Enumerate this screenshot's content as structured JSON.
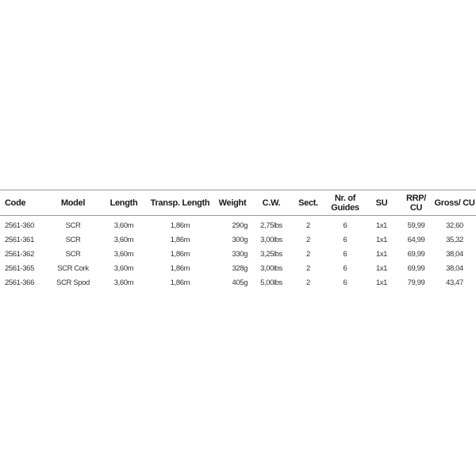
{
  "headers": [
    "Code",
    "Model",
    "Length",
    "Transp. Length",
    "Weight",
    "C.W.",
    "Sect.",
    "Nr. of Guides",
    "SU",
    "RRP/ CU",
    "Gross/ CU"
  ],
  "rows": [
    [
      "2561-360",
      "SCR",
      "3,60m",
      "1,86m",
      "290g",
      "2,75lbs",
      "2",
      "6",
      "1x1",
      "59,99",
      "32,60"
    ],
    [
      "2561-361",
      "SCR",
      "3,60m",
      "1,86m",
      "300g",
      "3,00lbs",
      "2",
      "6",
      "1x1",
      "64,99",
      "35,32"
    ],
    [
      "2561-362",
      "SCR",
      "3,60m",
      "1,86m",
      "330g",
      "3,25lbs",
      "2",
      "6",
      "1x1",
      "69,99",
      "38,04"
    ],
    [
      "2561-365",
      "SCR Cork",
      "3,60m",
      "1,86m",
      "328g",
      "3,00lbs",
      "2",
      "6",
      "1x1",
      "69,99",
      "38,04"
    ],
    [
      "2561-366",
      "SCR Spod",
      "3,60m",
      "1,86m",
      "405g",
      "5,00lbs",
      "2",
      "6",
      "1x1",
      "79,99",
      "43,47"
    ]
  ]
}
